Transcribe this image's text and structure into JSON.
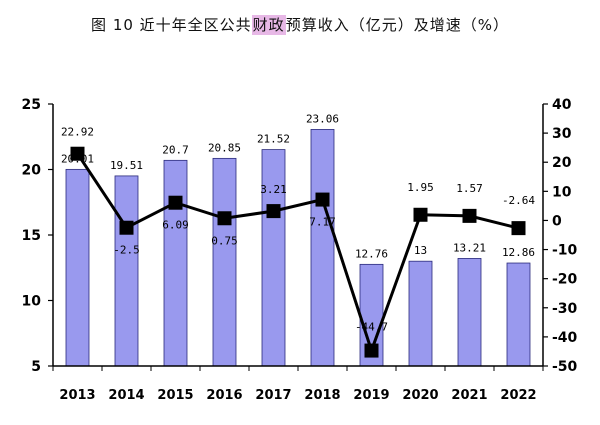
{
  "title": {
    "prefix": "图 10   近十年全区公共",
    "highlight": "财政",
    "suffix": "预算收入（亿元）及增速（%）"
  },
  "colors": {
    "bar_fill": "#9999ee",
    "bar_stroke": "#2a2a7a",
    "line": "#000000",
    "marker": "#000000",
    "title_highlight": "#e7b8e6"
  },
  "chart_data": {
    "type": "bar+line",
    "categories": [
      "2013",
      "2014",
      "2015",
      "2016",
      "2017",
      "2018",
      "2019",
      "2020",
      "2021",
      "2022"
    ],
    "series": [
      {
        "type": "bar",
        "axis": "left",
        "values": [
          20.01,
          19.51,
          20.7,
          20.85,
          21.52,
          23.06,
          12.76,
          13,
          13.21,
          12.86
        ],
        "labels": [
          "20.01",
          "19.51",
          "20.7",
          "20.85",
          "21.52",
          "23.06",
          "12.76",
          "13",
          "13.21",
          "12.86"
        ]
      },
      {
        "type": "line",
        "axis": "right",
        "values": [
          22.92,
          -2.5,
          6.09,
          0.75,
          3.21,
          7.17,
          -44.7,
          1.95,
          1.57,
          -2.64
        ],
        "labels": [
          "22.92",
          "-2.5",
          "6.09",
          "0.75",
          "3.21",
          "7.17",
          "-44.7",
          "1.95",
          "1.57",
          "-2.64"
        ]
      }
    ],
    "y_left": {
      "min": 5,
      "max": 25,
      "ticks": [
        "5",
        "10",
        "15",
        "20",
        "25"
      ]
    },
    "y_right": {
      "min": -50,
      "max": 40,
      "ticks": [
        "-50",
        "-40",
        "-30",
        "-20",
        "-10",
        "0",
        "10",
        "20",
        "30",
        "40"
      ]
    },
    "grid": false,
    "legend": "none"
  }
}
